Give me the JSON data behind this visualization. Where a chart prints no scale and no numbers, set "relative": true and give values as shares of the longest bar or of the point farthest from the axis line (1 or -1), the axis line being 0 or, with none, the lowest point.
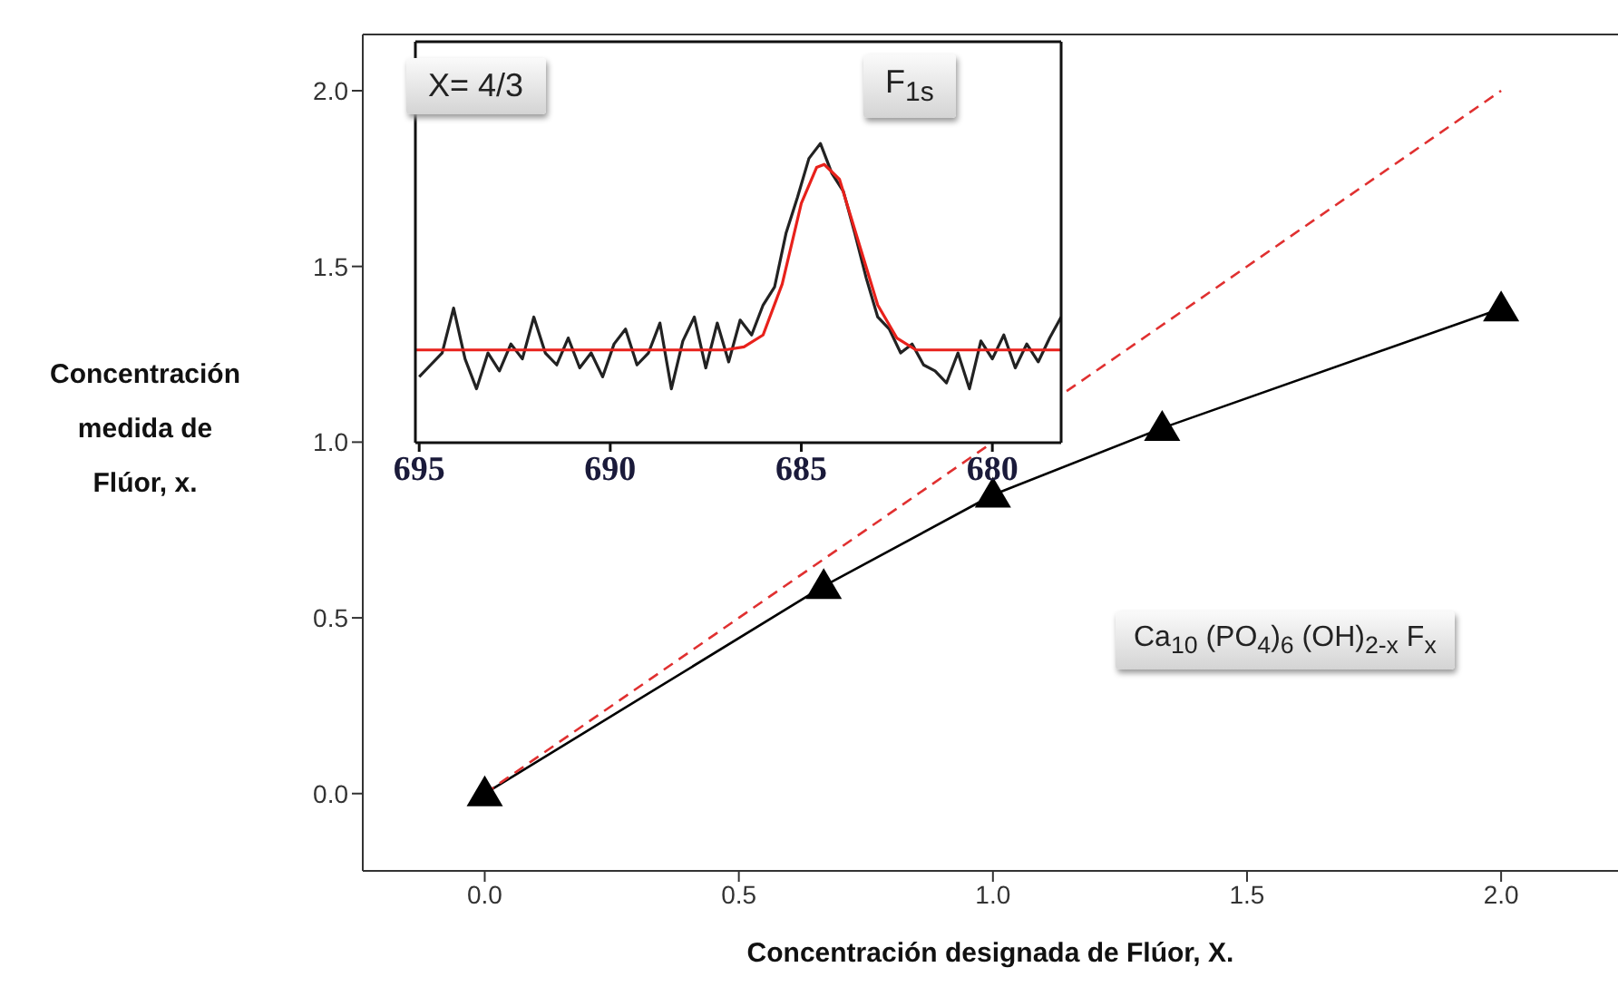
{
  "chart_data": [
    {
      "type": "line",
      "xlabel": "Concentración designada de Flúor, X.",
      "ylabel": "Concentración\nmedida de\nFlúor, x.",
      "xlim": [
        -0.24,
        2.23
      ],
      "ylim": [
        -0.22,
        2.16
      ],
      "xticks": [
        "0.0",
        0.5,
        "1.0",
        1.5,
        "2.0"
      ],
      "yticks": [
        {
          "value": 0,
          "label": "0.0"
        },
        {
          "value": 0.5,
          "label": "0.5"
        },
        {
          "value": 1,
          "label": "1.0"
        },
        {
          "value": 1.5,
          "label": "1.5"
        },
        {
          "value": 2,
          "label": "2.0"
        }
      ],
      "series": [
        {
          "type": "line",
          "color": "#000000",
          "marker": "triangle",
          "line_style": "solid",
          "x": [
            0,
            0.667,
            1,
            1.333,
            2
          ],
          "values": [
            0,
            0.59,
            0.85,
            1.04,
            1.38
          ]
        },
        {
          "type": "line",
          "color": "#e03030",
          "marker": "none",
          "line_style": "dashed",
          "x": [
            0,
            2
          ],
          "values": [
            0,
            2.0
          ]
        }
      ],
      "annotations": [
        "Ca$_{10}$ (PO$_{4}$)$_{6}$ (OH)$_{2-x}$ F$_{x}$"
      ]
    },
    {
      "type": "line",
      "relative": true,
      "tick_labels": "x",
      "xlim": [
        695.1,
        678.2
      ],
      "xticks": [
        695,
        690,
        685,
        680
      ],
      "series": [
        {
          "type": "line",
          "color": "#222222",
          "marker": "none",
          "line_style": "solid",
          "x": [
            695,
            694.7,
            694.4,
            694.1,
            693.8,
            693.5,
            693.2,
            692.9,
            692.6,
            692.3,
            692.0,
            691.7,
            691.4,
            691.1,
            690.8,
            690.5,
            690.2,
            689.9,
            689.6,
            689.3,
            689.0,
            688.7,
            688.4,
            688.1,
            687.8,
            687.5,
            687.2,
            686.9,
            686.6,
            686.3,
            686.0,
            685.7,
            685.4,
            685.1,
            684.8,
            684.5,
            684.2,
            683.9,
            683.6,
            683.3,
            683.0,
            682.7,
            682.4,
            682.1,
            681.8,
            681.5,
            681.2,
            680.9,
            680.6,
            680.3,
            680.0,
            679.7,
            679.4,
            679.1,
            678.8,
            678.5,
            678.2
          ],
          "values": [
            0.22,
            0.26,
            0.3,
            0.45,
            0.28,
            0.18,
            0.3,
            0.24,
            0.33,
            0.28,
            0.42,
            0.3,
            0.26,
            0.35,
            0.25,
            0.3,
            0.22,
            0.33,
            0.38,
            0.26,
            0.3,
            0.4,
            0.18,
            0.34,
            0.42,
            0.25,
            0.4,
            0.27,
            0.41,
            0.36,
            0.46,
            0.52,
            0.7,
            0.82,
            0.95,
            1.0,
            0.9,
            0.84,
            0.7,
            0.55,
            0.42,
            0.38,
            0.3,
            0.33,
            0.26,
            0.24,
            0.2,
            0.3,
            0.18,
            0.34,
            0.28,
            0.36,
            0.25,
            0.33,
            0.27,
            0.35,
            0.42
          ]
        },
        {
          "type": "line",
          "color": "#e8211b",
          "marker": "none",
          "line_style": "solid",
          "x": [
            695.1,
            687,
            686.5,
            686,
            685.5,
            685,
            684.6,
            684.4,
            684,
            683.5,
            683,
            682.5,
            682,
            678.2
          ],
          "values": [
            0.31,
            0.31,
            0.32,
            0.36,
            0.53,
            0.8,
            0.92,
            0.93,
            0.88,
            0.67,
            0.46,
            0.35,
            0.31,
            0.31
          ]
        }
      ],
      "annotations": [
        "X= 4/3",
        "F$_{1s}$"
      ]
    }
  ]
}
